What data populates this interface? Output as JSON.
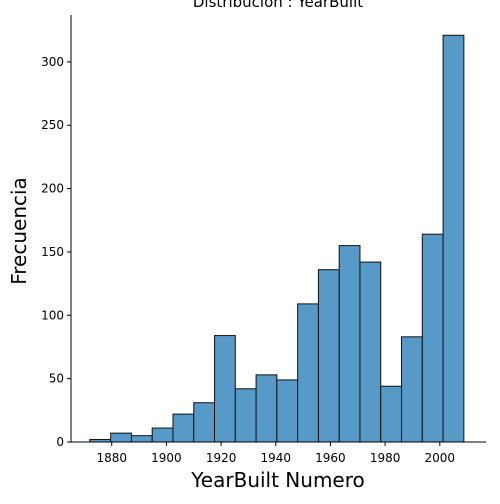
{
  "chart_data": {
    "type": "bar",
    "title": "Distribución : YearBuilt",
    "xlabel": "YearBuilt Numero",
    "ylabel": "Frecuencia",
    "xlim": [
      1865.1,
      2016.9
    ],
    "ylim": [
      0,
      337
    ],
    "xticks": [
      1880,
      1900,
      1920,
      1940,
      1960,
      1980,
      2000
    ],
    "yticks": [
      0,
      50,
      100,
      150,
      200,
      250,
      300
    ],
    "grid": false,
    "legend": "none",
    "bin_width": 7.6,
    "bins": [
      {
        "start": 1872.0,
        "count": 2
      },
      {
        "start": 1879.6,
        "count": 7
      },
      {
        "start": 1887.2,
        "count": 5
      },
      {
        "start": 1894.8,
        "count": 11
      },
      {
        "start": 1902.4,
        "count": 22
      },
      {
        "start": 1910.0,
        "count": 31
      },
      {
        "start": 1917.6,
        "count": 84
      },
      {
        "start": 1925.2,
        "count": 42
      },
      {
        "start": 1932.8,
        "count": 53
      },
      {
        "start": 1940.4,
        "count": 49
      },
      {
        "start": 1948.0,
        "count": 109
      },
      {
        "start": 1955.6,
        "count": 136
      },
      {
        "start": 1963.2,
        "count": 155
      },
      {
        "start": 1970.8,
        "count": 142
      },
      {
        "start": 1978.4,
        "count": 44
      },
      {
        "start": 1986.0,
        "count": 83
      },
      {
        "start": 1993.6,
        "count": 164
      },
      {
        "start": 2001.2,
        "count": 321
      }
    ],
    "colors": {
      "bar_fill": "#5799c7",
      "bar_edge": "#111111",
      "axis": "#000000"
    }
  }
}
